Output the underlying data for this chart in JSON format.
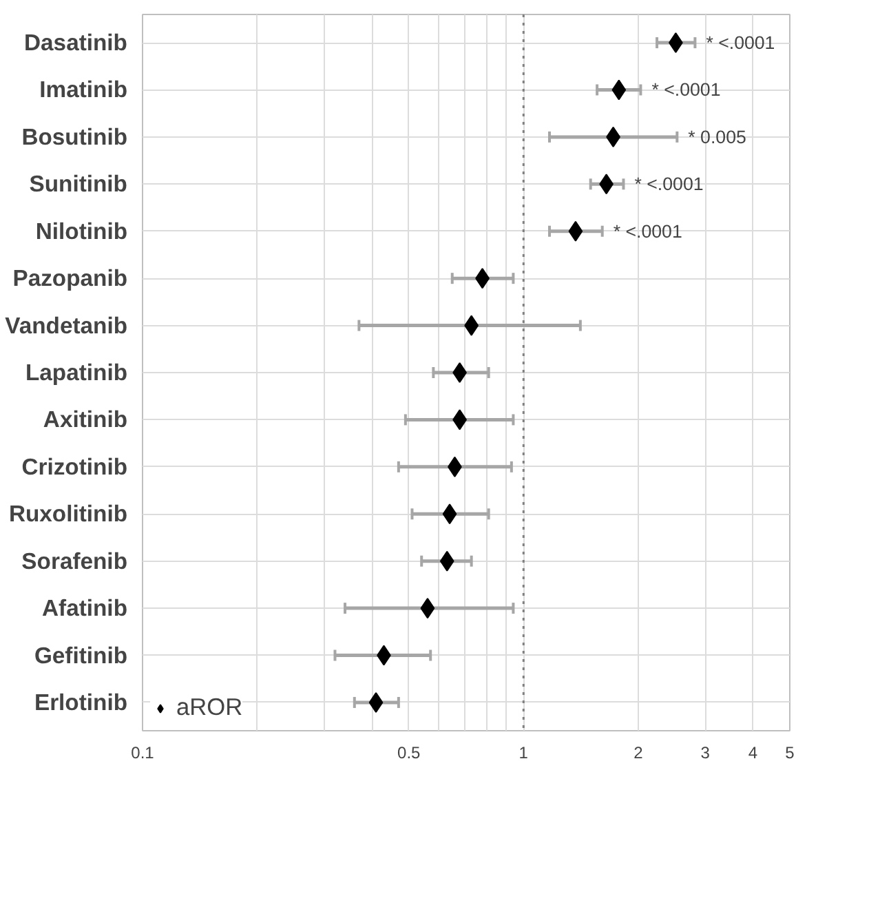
{
  "chart_data": {
    "type": "scatter",
    "categories": [
      "Dasatinib",
      "Imatinib",
      "Bosutinib",
      "Sunitinib",
      "Nilotinib",
      "Pazopanib",
      "Vandetanib",
      "Lapatinib",
      "Axitinib",
      "Crizotinib",
      "Ruxolitinib",
      "Sorafenib",
      "Afatinib",
      "Gefitinib",
      "Erlotinib"
    ],
    "orientation": "horizontal",
    "series": [
      {
        "name": "aROR",
        "color": "#000000",
        "values": [
          2.51,
          1.78,
          1.72,
          1.65,
          1.37,
          0.78,
          0.73,
          0.68,
          0.68,
          0.66,
          0.64,
          0.63,
          0.56,
          0.43,
          0.41
        ],
        "errors": [
          [
            2.24,
            2.82
          ],
          [
            1.56,
            2.03
          ],
          [
            1.17,
            2.53
          ],
          [
            1.5,
            1.83
          ],
          [
            1.17,
            1.61
          ],
          [
            0.65,
            0.94
          ],
          [
            0.37,
            1.41
          ],
          [
            0.58,
            0.81
          ],
          [
            0.49,
            0.94
          ],
          [
            0.47,
            0.93
          ],
          [
            0.51,
            0.81
          ],
          [
            0.54,
            0.73
          ],
          [
            0.34,
            0.94
          ],
          [
            0.32,
            0.57
          ],
          [
            0.36,
            0.47
          ]
        ]
      }
    ],
    "marker": "diamond",
    "log": "x",
    "xlim": [
      0.1,
      5
    ],
    "xticks": [
      0.1,
      {
        "value": 0.2,
        "label": null
      },
      {
        "value": 0.3,
        "label": null
      },
      {
        "value": 0.4,
        "label": null
      },
      0.5,
      {
        "value": 0.6,
        "label": null
      },
      {
        "value": 0.7,
        "label": null
      },
      {
        "value": 0.8,
        "label": null
      },
      {
        "value": 0.9,
        "label": null
      },
      1,
      2,
      3,
      4,
      5
    ],
    "grid": true,
    "legend": "bottom left",
    "ref_lines": [
      {
        "axis": "x",
        "value": 1,
        "line_style": "dotted",
        "color": "#808080"
      }
    ],
    "annotations": [
      {
        "text": "* <.0001",
        "x": 2.82,
        "y": "Dasatinib"
      },
      {
        "text": "* <.0001",
        "x": 2.03,
        "y": "Imatinib"
      },
      {
        "text": "* 0.005",
        "x": 2.53,
        "y": "Bosutinib"
      },
      {
        "text": "* <.0001",
        "x": 1.83,
        "y": "Sunitinib"
      },
      {
        "text": "* <.0001",
        "x": 1.61,
        "y": "Nilotinib"
      }
    ]
  }
}
